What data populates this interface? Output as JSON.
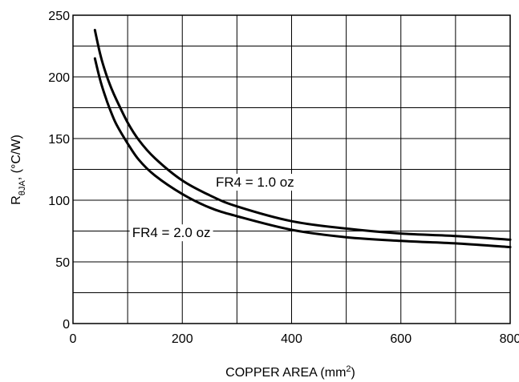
{
  "chart_data": {
    "type": "line",
    "title": "",
    "xlabel": "COPPER AREA (mm",
    "xlabel_superscript": "2",
    "xlabel_suffix": ")",
    "ylabel_main": "R",
    "ylabel_subscript": "θJA",
    "ylabel_suffix": ", (°C/W)",
    "xlim": [
      0,
      800
    ],
    "ylim": [
      0,
      250
    ],
    "x_ticks": [
      0,
      200,
      400,
      600,
      800
    ],
    "y_ticks": [
      0,
      50,
      100,
      150,
      200,
      250
    ],
    "grid": true,
    "x_grid_step": 100,
    "y_grid_step": 25,
    "series": [
      {
        "name": "FR4 = 1.0 oz",
        "x": [
          40,
          50,
          60,
          70,
          80,
          100,
          120,
          150,
          200,
          250,
          300,
          400,
          500,
          600,
          700,
          800
        ],
        "y": [
          238,
          218,
          203,
          191,
          181,
          163,
          149,
          134,
          116,
          104,
          95,
          83,
          77,
          73,
          71,
          68
        ]
      },
      {
        "name": "FR4 = 2.0 oz",
        "x": [
          40,
          50,
          60,
          70,
          80,
          100,
          120,
          150,
          200,
          250,
          300,
          400,
          500,
          600,
          700,
          800
        ],
        "y": [
          215,
          197,
          183,
          171,
          161,
          146,
          133,
          120,
          105,
          94,
          87,
          76,
          70,
          67,
          65,
          62
        ]
      }
    ],
    "annotations": [
      {
        "text": "FR4 = 1.0 oz",
        "x": 333,
        "y": 111
      },
      {
        "text": "FR4 = 2.0 oz",
        "x": 180,
        "y": 70
      }
    ]
  }
}
